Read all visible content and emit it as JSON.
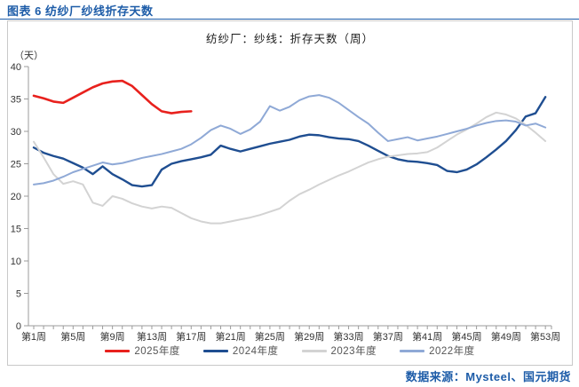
{
  "page": {
    "title": "图表 6  纺纱厂纱线折存天数",
    "source": "数据来源：Mysteel、国元期货"
  },
  "colors": {
    "accent_blue": "#1d5ca8",
    "frame_border": "#c9c9c9",
    "axis": "#9b9b9b",
    "tick_text": "#333333"
  },
  "chart_data": {
    "type": "line",
    "title": "纺纱厂：纱线：折存天数（周）",
    "unit_label": "（天）",
    "ylim": [
      0,
      40
    ],
    "ytick_step": 5,
    "x_weeks": 53,
    "xtick_every": 4,
    "xtick_labels": [
      "第1周",
      "第5周",
      "第9周",
      "第13周",
      "第17周",
      "第21周",
      "第25周",
      "第29周",
      "第33周",
      "第37周",
      "第41周",
      "第45周",
      "第49周",
      "第53周"
    ],
    "grid": false,
    "legend_position": "bottom",
    "series": [
      {
        "name": "2025年度",
        "color": "#e8211d",
        "width": 2.6,
        "values": [
          35.5,
          35.1,
          34.6,
          34.4,
          35.2,
          36.0,
          36.8,
          37.4,
          37.7,
          37.8,
          37.0,
          35.6,
          34.2,
          33.1,
          32.8,
          33.0,
          33.1
        ]
      },
      {
        "name": "2024年度",
        "color": "#1f4e91",
        "width": 2.4,
        "values": [
          27.5,
          26.7,
          26.2,
          25.8,
          25.1,
          24.4,
          23.4,
          24.6,
          23.4,
          22.6,
          21.7,
          21.5,
          21.7,
          24.1,
          25.0,
          25.4,
          25.7,
          26.0,
          26.4,
          27.8,
          27.3,
          26.9,
          27.3,
          27.7,
          28.1,
          28.4,
          28.7,
          29.2,
          29.5,
          29.4,
          29.1,
          28.9,
          28.8,
          28.5,
          27.8,
          27.0,
          26.2,
          25.7,
          25.4,
          25.3,
          25.1,
          24.8,
          23.9,
          23.7,
          24.1,
          24.9,
          26.0,
          27.2,
          28.5,
          30.2,
          32.3,
          32.8,
          35.3
        ]
      },
      {
        "name": "2023年度",
        "color": "#d3d3d3",
        "width": 2.0,
        "values": [
          28.4,
          26.0,
          23.4,
          21.9,
          22.3,
          21.8,
          19.0,
          18.5,
          20.0,
          19.6,
          18.9,
          18.4,
          18.1,
          18.4,
          18.2,
          17.4,
          16.6,
          16.1,
          15.8,
          15.8,
          16.1,
          16.4,
          16.7,
          17.1,
          17.6,
          18.1,
          19.3,
          20.3,
          21.0,
          21.8,
          22.5,
          23.2,
          23.8,
          24.5,
          25.2,
          25.7,
          26.1,
          26.3,
          26.5,
          26.6,
          26.8,
          27.5,
          28.5,
          29.5,
          30.3,
          31.2,
          32.2,
          32.9,
          32.6,
          32.0,
          31.0,
          29.8,
          28.5
        ]
      },
      {
        "name": "2022年度",
        "color": "#8fa9d6",
        "width": 2.0,
        "values": [
          21.8,
          22.0,
          22.4,
          23.0,
          23.7,
          24.2,
          24.7,
          25.2,
          24.9,
          25.1,
          25.5,
          25.9,
          26.2,
          26.5,
          26.9,
          27.3,
          28.0,
          29.0,
          30.2,
          30.9,
          30.4,
          29.6,
          30.3,
          31.5,
          33.9,
          33.2,
          33.8,
          34.8,
          35.4,
          35.6,
          35.2,
          34.4,
          33.3,
          32.2,
          31.2,
          29.8,
          28.5,
          28.8,
          29.1,
          28.6,
          28.9,
          29.2,
          29.6,
          30.0,
          30.4,
          30.9,
          31.3,
          31.6,
          31.7,
          31.5,
          30.9,
          31.2,
          30.6
        ]
      }
    ]
  }
}
